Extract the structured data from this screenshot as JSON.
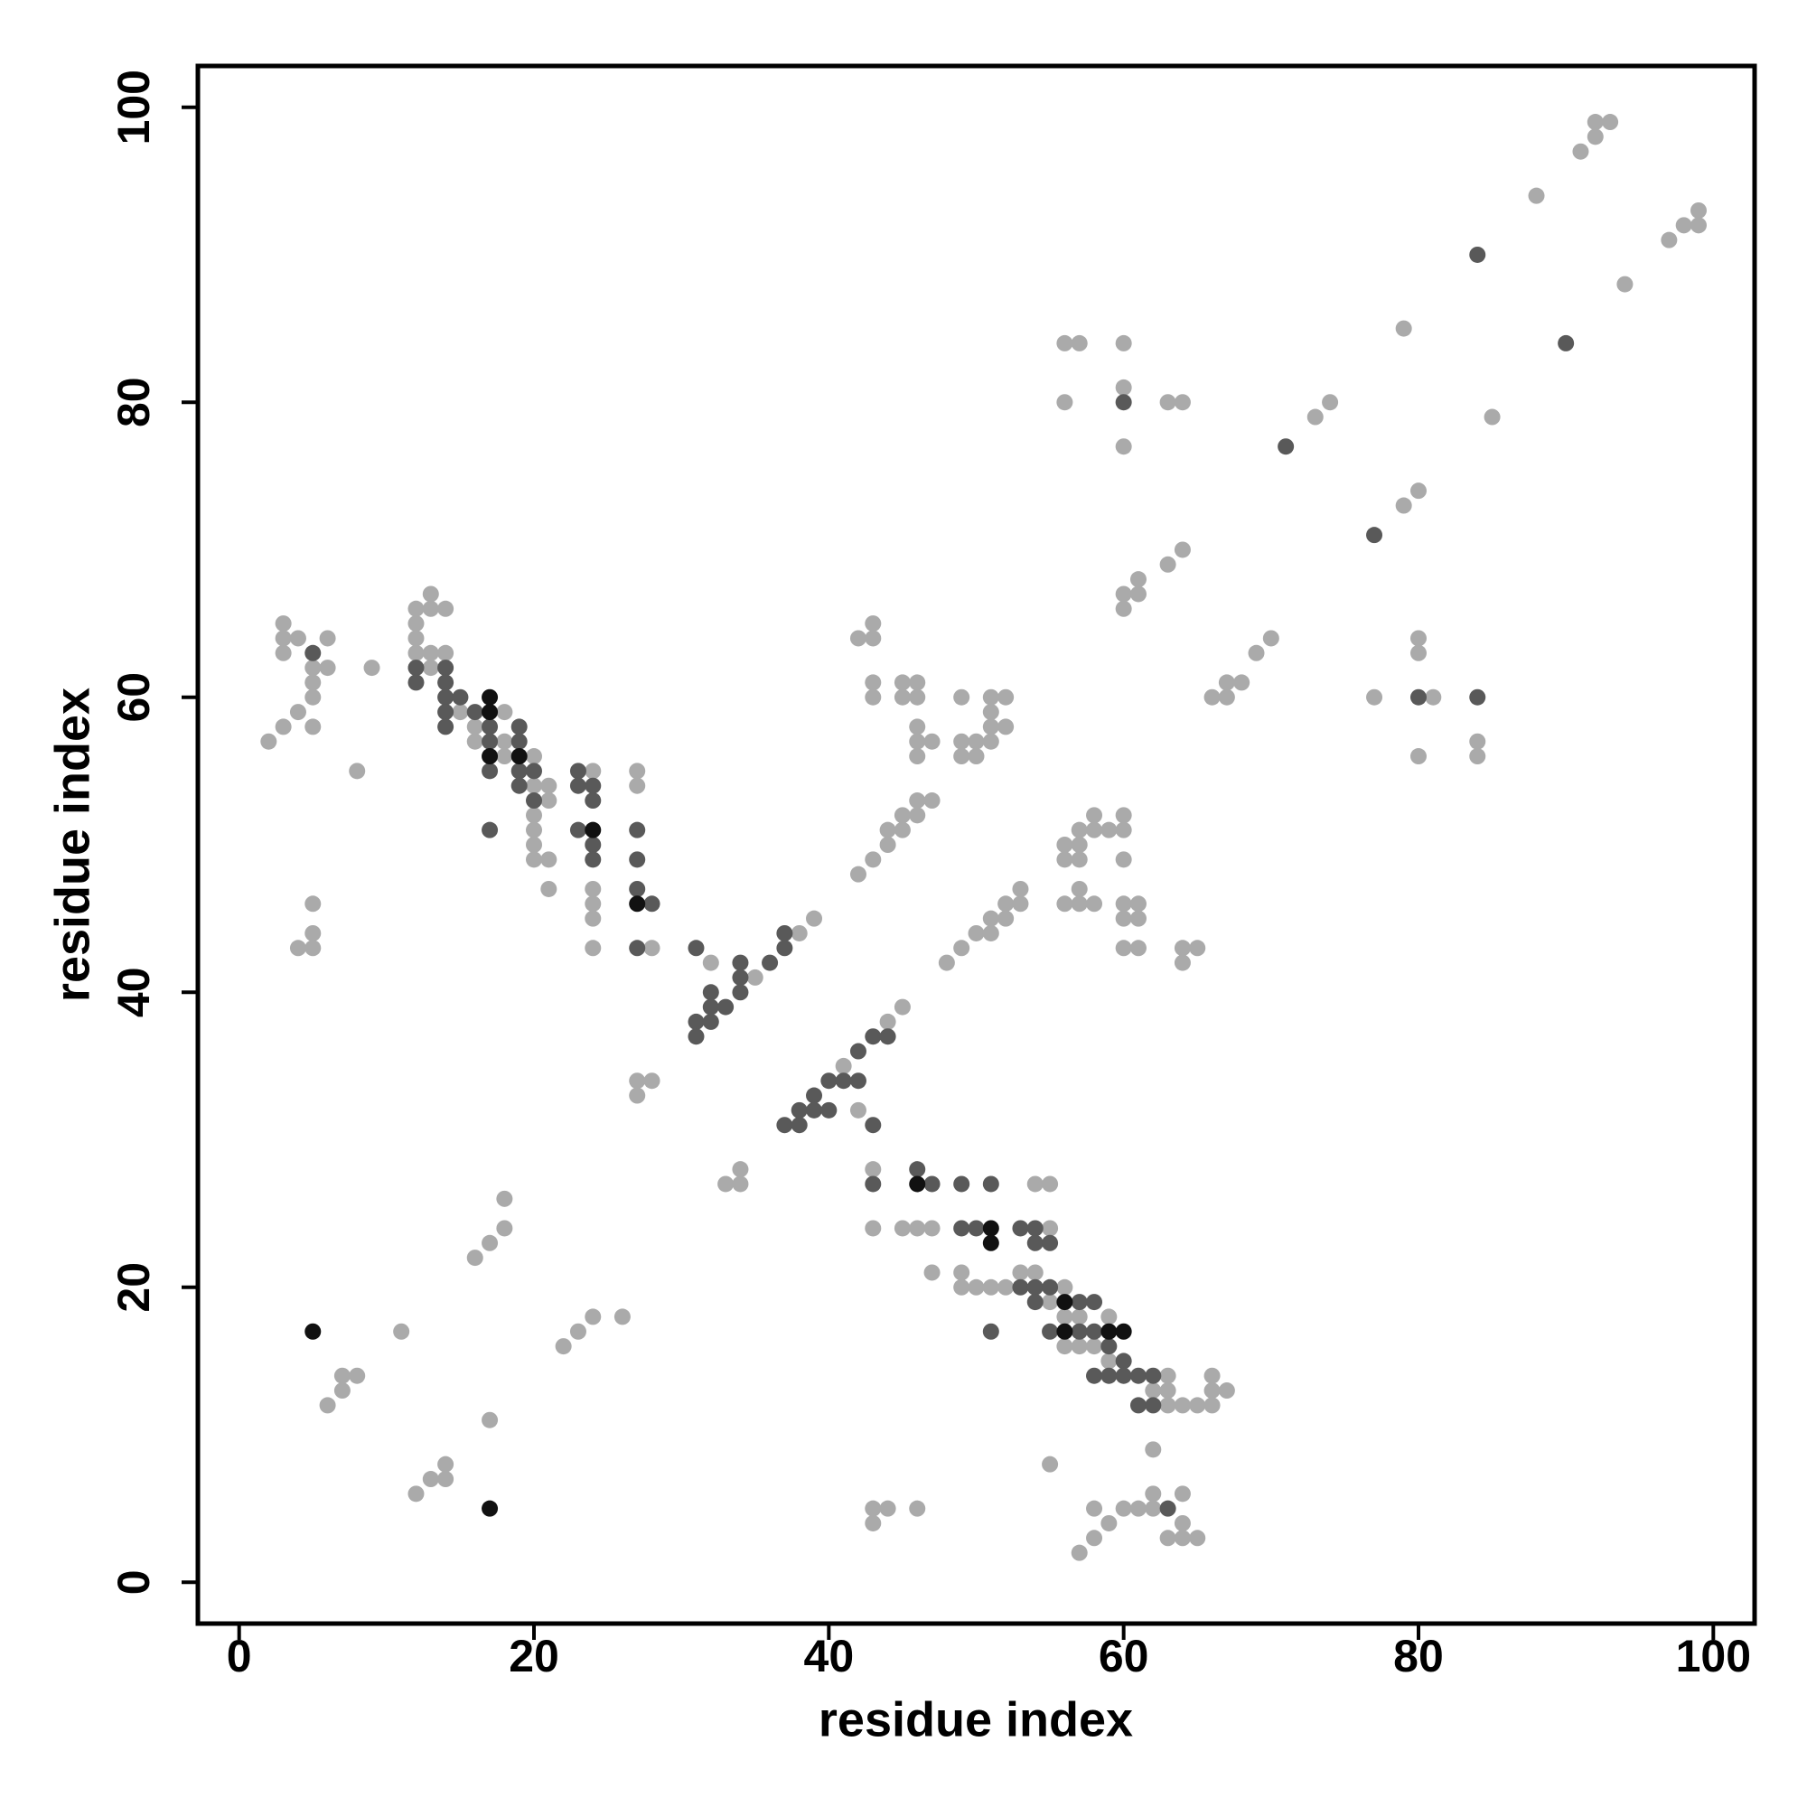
{
  "chart_data": {
    "type": "scatter",
    "xlabel": "residue index",
    "ylabel": "residue index",
    "xlim": [
      -2.8,
      102.8
    ],
    "ylim": [
      -2.8,
      102.8
    ],
    "xticks": [
      0,
      20,
      40,
      60,
      80,
      100
    ],
    "yticks": [
      0,
      20,
      40,
      60,
      80,
      100
    ],
    "grid": false,
    "series": [
      {
        "color": "#aaaaaa",
        "x": [
          92,
          93,
          92,
          91,
          88,
          97,
          98,
          99,
          99,
          94,
          79,
          85,
          74,
          73,
          80,
          79,
          56,
          57,
          60,
          56,
          60,
          60,
          63,
          64,
          64,
          63,
          61,
          60,
          61,
          60,
          70,
          69,
          68,
          67,
          66,
          67,
          80,
          80,
          77,
          81,
          80,
          84,
          84,
          3,
          3,
          4,
          3,
          2,
          3,
          4,
          5,
          5,
          5,
          6,
          6,
          5,
          9,
          8,
          5,
          5,
          4,
          5,
          12,
          13,
          14,
          13,
          12,
          12,
          12,
          13,
          13,
          14,
          15,
          16,
          16,
          18,
          18,
          18,
          20,
          20,
          21,
          21,
          20,
          20,
          20,
          20,
          21,
          21,
          24,
          24,
          24,
          24,
          24,
          27,
          27,
          28,
          27,
          28,
          27,
          32,
          35,
          38,
          39,
          41,
          42,
          44,
          45,
          33,
          34,
          34,
          42,
          43,
          44,
          44,
          45,
          45,
          46,
          46,
          47,
          42,
          43,
          43,
          43,
          43,
          45,
          46,
          45,
          46,
          46,
          46,
          47,
          46,
          49,
          49,
          50,
          51,
          49,
          50,
          51,
          52,
          51,
          51,
          52,
          48,
          49,
          50,
          51,
          51,
          52,
          52,
          53,
          53,
          56,
          56,
          57,
          57,
          57,
          58,
          58,
          59,
          60,
          60,
          60,
          56,
          57,
          57,
          58,
          60,
          61,
          60,
          61,
          60,
          61,
          64,
          65,
          64,
          11,
          6,
          7,
          7,
          8,
          16,
          17,
          18,
          18,
          22,
          23,
          24,
          26,
          17,
          12,
          13,
          14,
          14,
          43,
          54,
          55,
          43,
          45,
          46,
          47,
          55,
          47,
          49,
          49,
          50,
          51,
          52,
          53,
          54,
          56,
          55,
          56,
          57,
          56,
          57,
          58,
          59,
          59,
          63,
          62,
          63,
          63,
          64,
          65,
          66,
          66,
          66,
          67,
          55,
          62,
          43,
          43,
          44,
          46,
          57,
          58,
          58,
          59,
          60,
          61,
          62,
          62,
          64,
          64,
          63,
          64,
          65
        ],
        "y": [
          99,
          99,
          98,
          97,
          94,
          91,
          92,
          93,
          92,
          88,
          85,
          79,
          80,
          79,
          74,
          73,
          84,
          84,
          84,
          80,
          81,
          77,
          80,
          80,
          70,
          69,
          68,
          67,
          67,
          66,
          64,
          63,
          61,
          61,
          60,
          60,
          64,
          63,
          60,
          60,
          56,
          57,
          56,
          65,
          64,
          64,
          63,
          57,
          58,
          59,
          60,
          61,
          62,
          62,
          64,
          58,
          62,
          55,
          46,
          44,
          43,
          43,
          66,
          67,
          66,
          66,
          65,
          64,
          63,
          63,
          62,
          63,
          59,
          58,
          57,
          59,
          57,
          56,
          56,
          54,
          54,
          53,
          52,
          51,
          50,
          49,
          49,
          47,
          55,
          47,
          46,
          45,
          43,
          55,
          54,
          43,
          34,
          34,
          33,
          42,
          41,
          44,
          45,
          35,
          32,
          38,
          39,
          27,
          27,
          28,
          48,
          49,
          50,
          51,
          51,
          52,
          52,
          53,
          53,
          64,
          64,
          65,
          61,
          60,
          61,
          61,
          60,
          60,
          58,
          57,
          57,
          56,
          60,
          57,
          57,
          57,
          56,
          56,
          60,
          60,
          59,
          58,
          58,
          42,
          43,
          44,
          44,
          45,
          45,
          46,
          46,
          47,
          50,
          49,
          49,
          50,
          51,
          52,
          51,
          51,
          52,
          51,
          49,
          46,
          47,
          46,
          46,
          46,
          46,
          45,
          45,
          43,
          43,
          43,
          43,
          42,
          17,
          12,
          13,
          14,
          14,
          22,
          23,
          24,
          26,
          16,
          17,
          18,
          18,
          11,
          6,
          7,
          7,
          8,
          28,
          27,
          27,
          24,
          24,
          24,
          24,
          24,
          21,
          21,
          20,
          20,
          20,
          20,
          21,
          21,
          20,
          19,
          18,
          18,
          16,
          16,
          16,
          18,
          15,
          14,
          13,
          13,
          12,
          12,
          12,
          12,
          14,
          13,
          13,
          8,
          9,
          5,
          4,
          5,
          5,
          2,
          3,
          5,
          4,
          5,
          5,
          5,
          6,
          6,
          4,
          3,
          3,
          3
        ]
      },
      {
        "color": "#595959",
        "x": [
          84,
          90,
          71,
          77,
          60,
          80,
          84,
          5,
          12,
          12,
          14,
          14,
          14,
          15,
          14,
          14,
          16,
          17,
          17,
          17,
          19,
          19,
          19,
          20,
          19,
          20,
          17,
          23,
          23,
          24,
          24,
          23,
          24,
          24,
          27,
          27,
          27,
          28,
          27,
          31,
          31,
          31,
          32,
          32,
          32,
          33,
          34,
          34,
          34,
          36,
          37,
          37,
          37,
          38,
          38,
          39,
          39,
          40,
          40,
          41,
          42,
          42,
          43,
          44,
          43,
          43,
          46,
          47,
          49,
          51,
          49,
          50,
          53,
          54,
          54,
          55,
          53,
          54,
          55,
          54,
          57,
          58,
          51,
          55,
          57,
          58,
          59,
          60,
          58,
          59,
          60,
          61,
          62,
          61,
          62,
          63
        ],
        "y": [
          90,
          84,
          77,
          71,
          80,
          60,
          60,
          63,
          62,
          61,
          62,
          61,
          60,
          60,
          59,
          58,
          59,
          58,
          57,
          55,
          58,
          57,
          55,
          55,
          54,
          53,
          51,
          55,
          54,
          54,
          53,
          51,
          50,
          49,
          51,
          49,
          47,
          46,
          43,
          43,
          38,
          37,
          38,
          40,
          39,
          39,
          42,
          41,
          40,
          42,
          43,
          44,
          31,
          31,
          32,
          33,
          32,
          32,
          34,
          34,
          34,
          36,
          37,
          37,
          31,
          27,
          28,
          27,
          27,
          27,
          24,
          24,
          24,
          24,
          23,
          23,
          20,
          20,
          20,
          19,
          19,
          19,
          17,
          17,
          17,
          17,
          16,
          15,
          14,
          14,
          14,
          14,
          14,
          12,
          12,
          5
        ]
      },
      {
        "color": "#111111",
        "x": [
          17,
          17,
          17,
          19,
          24,
          27,
          5,
          17,
          46,
          51,
          51,
          56,
          56,
          59,
          60
        ],
        "y": [
          60,
          59,
          56,
          56,
          51,
          46,
          17,
          5,
          27,
          24,
          23,
          19,
          17,
          17,
          17
        ]
      }
    ]
  }
}
